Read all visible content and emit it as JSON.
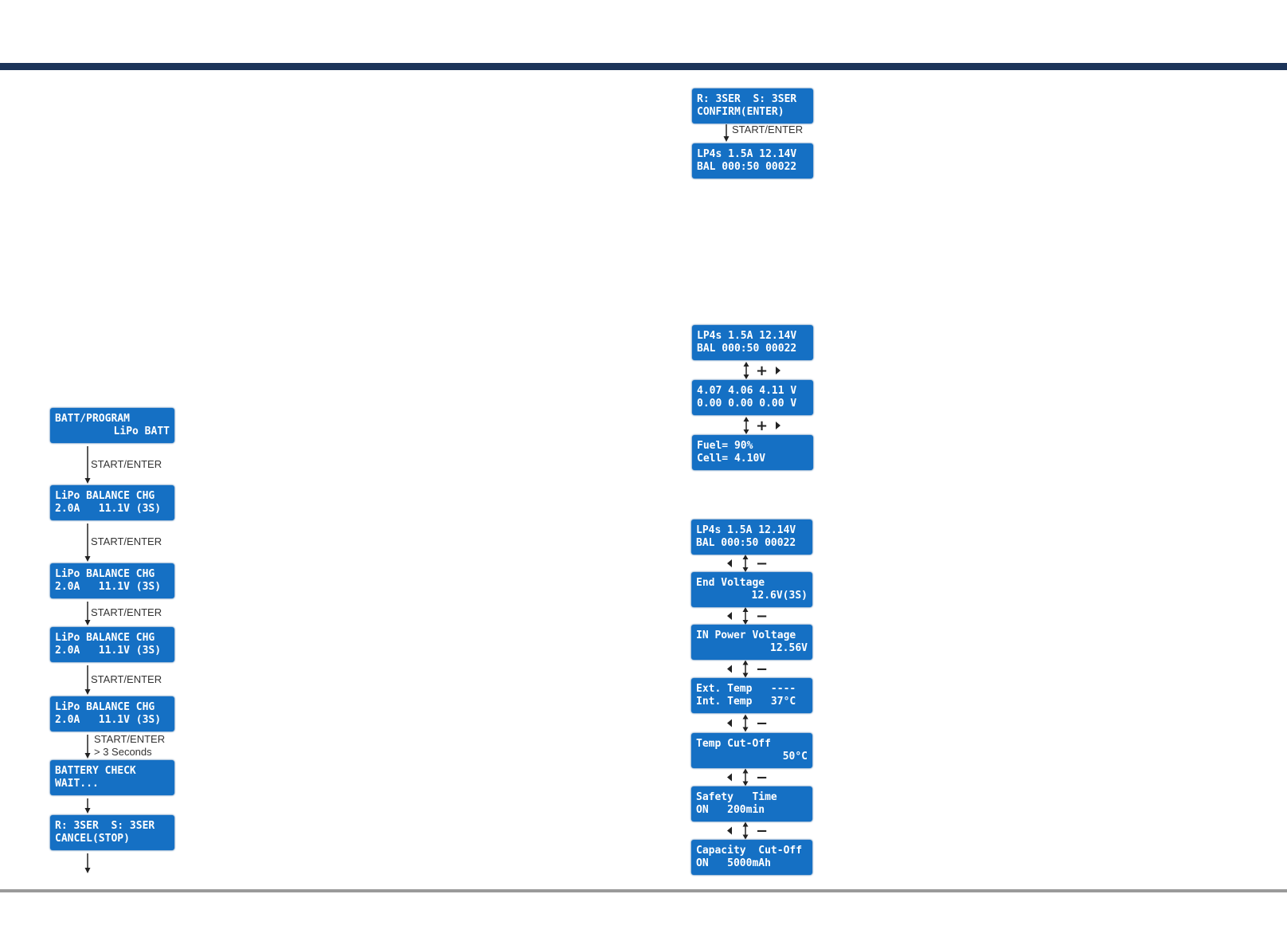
{
  "left_flow": {
    "screens": [
      {
        "lines": [
          "BATT/PROGRAM",
          "LiPo BATT"
        ]
      },
      {
        "lines": [
          "LiPo BALANCE CHG",
          "2.0A   11.1V (3S)"
        ]
      },
      {
        "lines": [
          "LiPo BALANCE CHG",
          "2.0A   11.1V (3S)"
        ]
      },
      {
        "lines": [
          "LiPo BALANCE CHG",
          "2.0A   11.1V (3S)"
        ]
      },
      {
        "lines": [
          "LiPo BALANCE CHG",
          "2.0A   11.1V (3S)"
        ]
      },
      {
        "lines": [
          "BATTERY CHECK",
          "WAIT..."
        ]
      },
      {
        "lines": [
          "R: 3SER  S: 3SER",
          "CANCEL(STOP)"
        ]
      }
    ],
    "transitions": [
      {
        "lines": [
          "START/ENTER"
        ]
      },
      {
        "lines": [
          "START/ENTER"
        ]
      },
      {
        "lines": [
          "START/ENTER"
        ]
      },
      {
        "lines": [
          "START/ENTER"
        ]
      },
      {
        "lines": [
          "START/ENTER",
          "> 3 Seconds"
        ]
      }
    ]
  },
  "confirm_flow": {
    "screens": [
      {
        "lines": [
          "R: 3SER  S: 3SER",
          "CONFIRM(ENTER)"
        ]
      },
      {
        "lines": [
          "LP4s 1.5A 12.14V",
          "BAL 000:50 00022"
        ]
      }
    ],
    "transition": "START/ENTER"
  },
  "monitor_flow": {
    "screens": [
      {
        "lines": [
          "LP4s 1.5A 12.14V",
          "BAL 000:50 00022"
        ]
      },
      {
        "lines": [
          "4.07 4.06 4.11 V",
          "0.00 0.00 0.00 V"
        ]
      },
      {
        "lines": [
          "Fuel= 90%",
          "Cell= 4.10V"
        ]
      }
    ],
    "connectors": [
      "+",
      "+"
    ]
  },
  "settings_flow": {
    "screens": [
      {
        "lines": [
          "LP4s 1.5A 12.14V",
          "BAL 000:50 00022"
        ]
      },
      {
        "lines": [
          "End Voltage",
          "12.6V(3S)"
        ]
      },
      {
        "lines": [
          "IN Power Voltage",
          "12.56V"
        ]
      },
      {
        "lines": [
          "Ext. Temp   ----",
          "Int. Temp   37°C"
        ]
      },
      {
        "lines": [
          "Temp Cut-Off",
          "50°C"
        ]
      },
      {
        "lines": [
          "Safety   Time",
          "ON   200min"
        ]
      },
      {
        "lines": [
          "Capacity  Cut-Off",
          "ON   5000mAh"
        ]
      }
    ],
    "connectors": [
      "−",
      "−",
      "−",
      "−",
      "−",
      "−"
    ]
  }
}
